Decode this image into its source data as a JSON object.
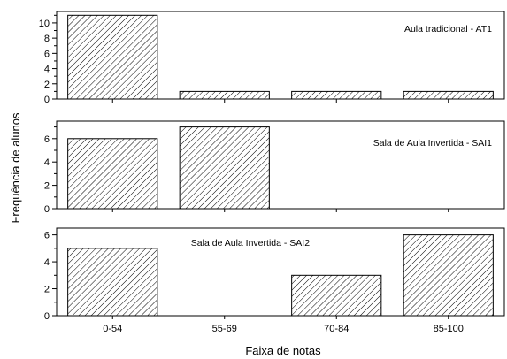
{
  "chart_data": {
    "type": "bar",
    "xlabel": "Faixa de notas",
    "ylabel": "Frequência de alunos",
    "categories": [
      "0-54",
      "55-69",
      "70-84",
      "85-100"
    ],
    "panels": [
      {
        "annotation": "Aula tradicional - AT1",
        "values": [
          11,
          1,
          1,
          1
        ],
        "ylim": [
          0,
          11.5
        ],
        "yticks": [
          0,
          2,
          4,
          6,
          8,
          10
        ]
      },
      {
        "annotation": "Sala de Aula Invertida - SAI1",
        "values": [
          6,
          7,
          0,
          0
        ],
        "ylim": [
          0,
          7.5
        ],
        "yticks": [
          0,
          2,
          4,
          6
        ]
      },
      {
        "annotation": "Sala de Aula Invertida - SAI2",
        "values": [
          5,
          0,
          3,
          6
        ],
        "ylim": [
          0,
          6.5
        ],
        "yticks": [
          0,
          2,
          4,
          6
        ]
      }
    ],
    "bar_fill": "diagonal-hatch",
    "colors": {
      "stroke": "#000000",
      "background": "#ffffff"
    }
  }
}
